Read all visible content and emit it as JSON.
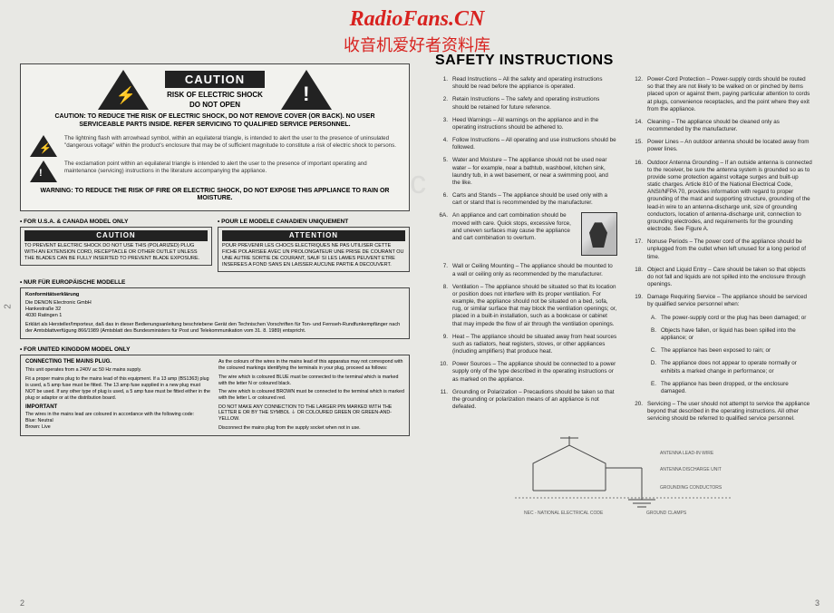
{
  "watermark": {
    "title": "RadioFans.CN",
    "subtitle": "收音机爱好者资料库",
    "bg": "www.radiofans.c"
  },
  "side_page_no": "2",
  "page_left_no": "2",
  "page_right_no": "3",
  "caution": {
    "banner": "CAUTION",
    "risk": "RISK OF ELECTRIC SHOCK",
    "dno": "DO NOT OPEN",
    "reduce": "CAUTION:   TO REDUCE THE RISK OF ELECTRIC SHOCK, DO NOT REMOVE COVER (OR BACK). NO USER SERVICEABLE PARTS INSIDE. REFER SERVICING TO QUALIFIED SERVICE PERSONNEL.",
    "bolt_text": "The lightning flash with arrowhead symbol, within an equilateral triangle, is intended to alert the user to the presence of uninsulated \"dangerous voltage\" within the product's enclosure that may be of sufficient magnitude to constitute a risk of electric shock to persons.",
    "bang_text": "The exclamation point within an equilateral triangle is intended to alert the user to the presence of important operating and maintenance (servicing) instructions in the literature accompanying the appliance.",
    "warning": "WARNING:   TO REDUCE THE RISK OF FIRE OR ELECTRIC SHOCK, DO NOT EXPOSE THIS APPLIANCE TO RAIN OR MOISTURE."
  },
  "usa": {
    "hdr": "• FOR U.S.A. & CANADA MODEL ONLY",
    "title": "CAUTION",
    "body": "TO PREVENT ELECTRIC SHOCK DO NOT USE THIS (POLARIZED) PLUG WITH AN EXTENSION CORD, RECEPTACLE OR OTHER OUTLET UNLESS THE BLADES CAN BE FULLY INSERTED TO PREVENT BLADE EXPOSURE."
  },
  "can": {
    "hdr": "• POUR LE MODELE CANADIEN UNIQUEMENT",
    "title": "ATTENTION",
    "body": "POUR PREVENIR LES CHOCS ELECTRIQUES NE PAS UTILISER CETTE FICHE POLARISEE AVEC UN PROLONGATEUR UNE PRISE DE COURANT OU UNE AUTRE SORTIE DE COURANT, SAUF SI LES LAMES PEUVENT ETRE INSEREES A FOND SANS EN LAISSER AUCUNE PARTIE A DECOUVERT."
  },
  "eu": {
    "hdr": "• NUR FÜR EUROPÄISCHE MODELLE",
    "sub": "Konformitätserklärung",
    "addr": "Die    DENON Electronic GmbH\nHankestraße 32\n4030 Ratingen 1",
    "body": "Erklärt als Hersteller/Importeur, daß das in dieser Bedienungsanleitung beschriebene Gerät den Technischen Vorschriften für Ton- und Fernseh-Rundfunkempfänger nach der Amtsblattverfügung 866/1989 (Amtsblatt des Bundesministers für Post und Telekommunikation vom 31. 8. 1989) entspricht."
  },
  "uk": {
    "hdr": "• FOR UNITED KINGDOM MODEL ONLY",
    "left_h1": "CONNECTING THE MAINS PLUG.",
    "left_p1": "This unit operates from a 240V ac 50 Hz mains supply.",
    "left_p2": "Fit a proper mains plug to the mains lead of this equipment. If a 13 amp (BS1363) plug is used, a 5 amp fuse must be fitted. The 13 amp fuse supplied in a new plug must NOT be used. If any other type of plug is used, a 5 amp fuse must be fitted either in the plug or adaptor or at the distribution board.",
    "left_h2": "IMPORTANT",
    "left_p3": "The wires in the mains lead are coloured in accordance with the following code:",
    "left_p4": "Blue:      Neutral\nBrown:   Live",
    "right_p1": "As the colours of the wires in the mains lead of this apparatus may not correspond with the coloured markings identifying the terminals in your plug, proceed as follows:",
    "right_p2": "The wire which is coloured BLUE must be connected to the terminal which is marked with the letter N or coloured black.",
    "right_p3": "The wire which is coloured BROWN must be connected to the terminal which is marked with the letter L or coloured red.",
    "right_p4": "DO NOT MAKE ANY CONNECTION TO THE LARGER PIN MARKED WITH THE LETTER E OR BY THE SYMBOL ⏚ OR COLOURED GREEN OR GREEN-AND-YELLOW.",
    "right_p5": "Disconnect the mains plug from the supply socket when not in use."
  },
  "safety": {
    "title": "SAFETY INSTRUCTIONS",
    "col1": [
      {
        "n": "1.",
        "t": "Read Instructions – All the safety and operating instructions should be read before the appliance is operated."
      },
      {
        "n": "2.",
        "t": "Retain Instructions – The safety and operating instructions should be retained for future reference."
      },
      {
        "n": "3.",
        "t": "Heed Warnings – All warnings on the appliance and in the operating instructions should be adhered to."
      },
      {
        "n": "4.",
        "t": "Follow Instructions – All operating and use instructions should be followed."
      },
      {
        "n": "5.",
        "t": "Water and Moisture – The appliance should not be used near water – for example, near a bathtub, washbowl, kitchen sink, laundry tub, in a wet basement, or near a swimming pool, and the like."
      },
      {
        "n": "6.",
        "t": "Carts and Stands – The appliance should be used only with a cart or stand that is recommended by the manufacturer."
      },
      {
        "n": "6A.",
        "t": "An appliance and cart combination should be moved with care. Quick stops, excessive force, and uneven surfaces may cause the appliance and cart combination to overturn."
      },
      {
        "n": "7.",
        "t": "Wall or Ceiling Mounting – The appliance should be mounted to a wall or ceiling only as recommended by the manufacturer."
      },
      {
        "n": "8.",
        "t": "Ventilation – The appliance should be situated so that its location or position does not interfere with its proper ventilation. For example, the appliance should not be situated on a bed, sofa, rug, or similar surface that may block the ventilation openings; or, placed in a built-in installation, such as a bookcase or cabinet that may impede the flow of air through the ventilation openings."
      },
      {
        "n": "9.",
        "t": "Heat – The appliance should be situated away from heat sources such as radiators, heat registers, stoves, or other appliances (including amplifiers) that produce heat."
      },
      {
        "n": "10.",
        "t": "Power Sources – The appliance should be connected to a power supply only of the type described in the operating instructions or as marked on the appliance."
      },
      {
        "n": "11.",
        "t": "Grounding or Polarization – Precautions should be taken so that the grounding or polarization means of an appliance is not defeated."
      }
    ],
    "col2": [
      {
        "n": "12.",
        "t": "Power-Cord Protection – Power-supply cords should be routed so that they are not likely to be walked on or pinched by items placed upon or against them, paying particular attention to cords at plugs, convenience receptacles, and the point where they exit from the appliance."
      },
      {
        "n": "14.",
        "t": "Cleaning – The appliance should be cleaned only as recommended by the manufacturer."
      },
      {
        "n": "15.",
        "t": "Power Lines – An outdoor antenna should be located away from power lines."
      },
      {
        "n": "16.",
        "t": "Outdoor Antenna Grounding – If an outside antenna is connected to the receiver, be sure the antenna system is grounded so as to provide some protection against voltage surges and built-up static charges. Article 810 of the National Electrical Code, ANSI/NFPA 70, provides information with regard to proper grounding of the mast and supporting structure, grounding of the lead-in wire to an antenna-discharge unit, size of grounding conductors, location of antenna-discharge unit, connection to grounding electrodes, and requirements for the grounding electrode. See Figure A."
      },
      {
        "n": "17.",
        "t": "Nonuse Periods – The power cord of the appliance should be unplugged from the outlet when left unused for a long period of time."
      },
      {
        "n": "18.",
        "t": "Object and Liquid Entry – Care should be taken so that objects do not fall and liquids are not spilled into the enclosure through openings."
      },
      {
        "n": "19.",
        "t": "Damage Requiring Service – The appliance should be serviced by qualified service personnel when:"
      }
    ],
    "col2sub": [
      {
        "n": "A.",
        "t": "The power-supply cord or the plug has been damaged; or"
      },
      {
        "n": "B.",
        "t": "Objects have fallen, or liquid has been spilled into the appliance; or"
      },
      {
        "n": "C.",
        "t": "The appliance has been exposed to rain; or"
      },
      {
        "n": "D.",
        "t": "The appliance does not appear to operate normally or exhibits a marked change in performance; or"
      },
      {
        "n": "E.",
        "t": "The appliance has been dropped, or the enclosure damaged."
      }
    ],
    "col2_20": {
      "n": "20.",
      "t": "Servicing – The user should not attempt to service the appliance beyond that described in the operating instructions. All other servicing should be referred to qualified service personnel."
    }
  }
}
